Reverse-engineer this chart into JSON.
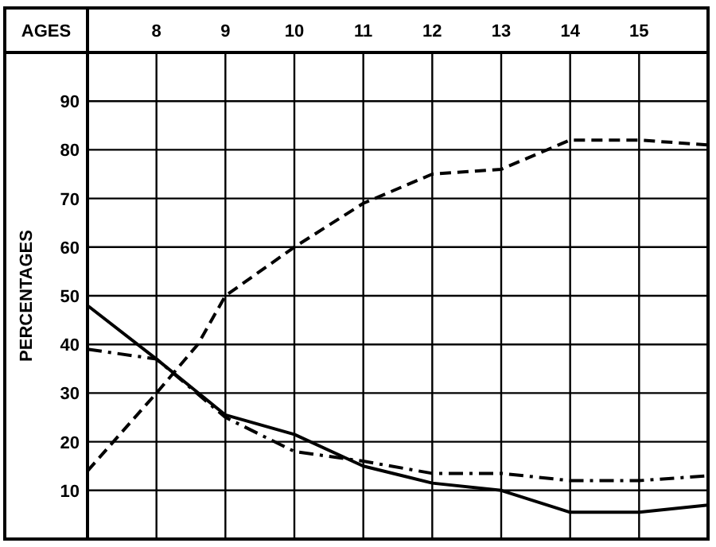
{
  "chart_data": {
    "type": "line",
    "xlabel": "AGES",
    "ylabel": "PERCENTAGES",
    "x": [
      7,
      8,
      9,
      10,
      11,
      12,
      13,
      14,
      15,
      16
    ],
    "xlim": [
      7,
      16
    ],
    "xticks": [
      8,
      9,
      10,
      11,
      12,
      13,
      14,
      15
    ],
    "ylim": [
      0,
      100
    ],
    "yticks": [
      10,
      20,
      30,
      40,
      50,
      60,
      70,
      80,
      90
    ],
    "grid": true,
    "marker": "none",
    "series": [
      {
        "color": "#000000",
        "line_style": "dashed",
        "x": [
          7,
          8,
          8.6,
          9,
          10,
          11,
          12,
          13,
          14,
          15,
          16
        ],
        "values": [
          14,
          30,
          40,
          50,
          60,
          69,
          75,
          76,
          82,
          82,
          81
        ]
      },
      {
        "color": "#000000",
        "line_style": "solid",
        "values": [
          48,
          37,
          25.5,
          21.5,
          15,
          11.5,
          10,
          5.5,
          5.5,
          7
        ]
      },
      {
        "color": "#000000",
        "line_style": "dashdot",
        "values": [
          39,
          37,
          25,
          18,
          16,
          13.5,
          13.5,
          12,
          12,
          13
        ]
      }
    ]
  }
}
